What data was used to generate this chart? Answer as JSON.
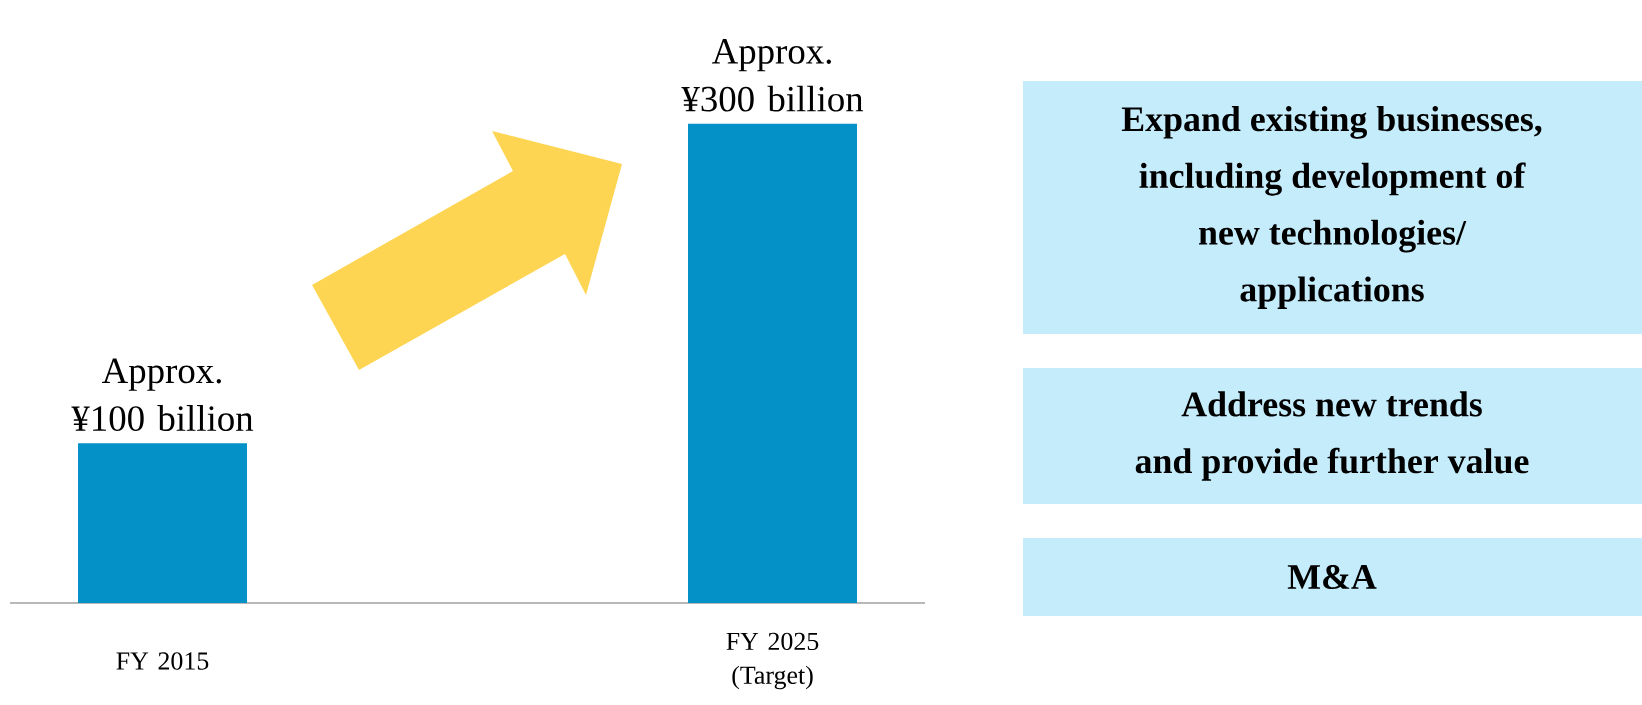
{
  "chart_data": {
    "type": "bar",
    "categories": [
      "FY 2015",
      "FY 2025 (Target)"
    ],
    "values": [
      100,
      300
    ],
    "value_labels": [
      "Approx. ¥100 billion",
      "Approx. ¥300 billion"
    ],
    "color": "#0391c8",
    "annotations": [
      "Expand existing businesses,",
      "including development of",
      "new technologies/",
      "applications",
      "Address new trends",
      "and provide further value",
      "M&A"
    ]
  }
}
